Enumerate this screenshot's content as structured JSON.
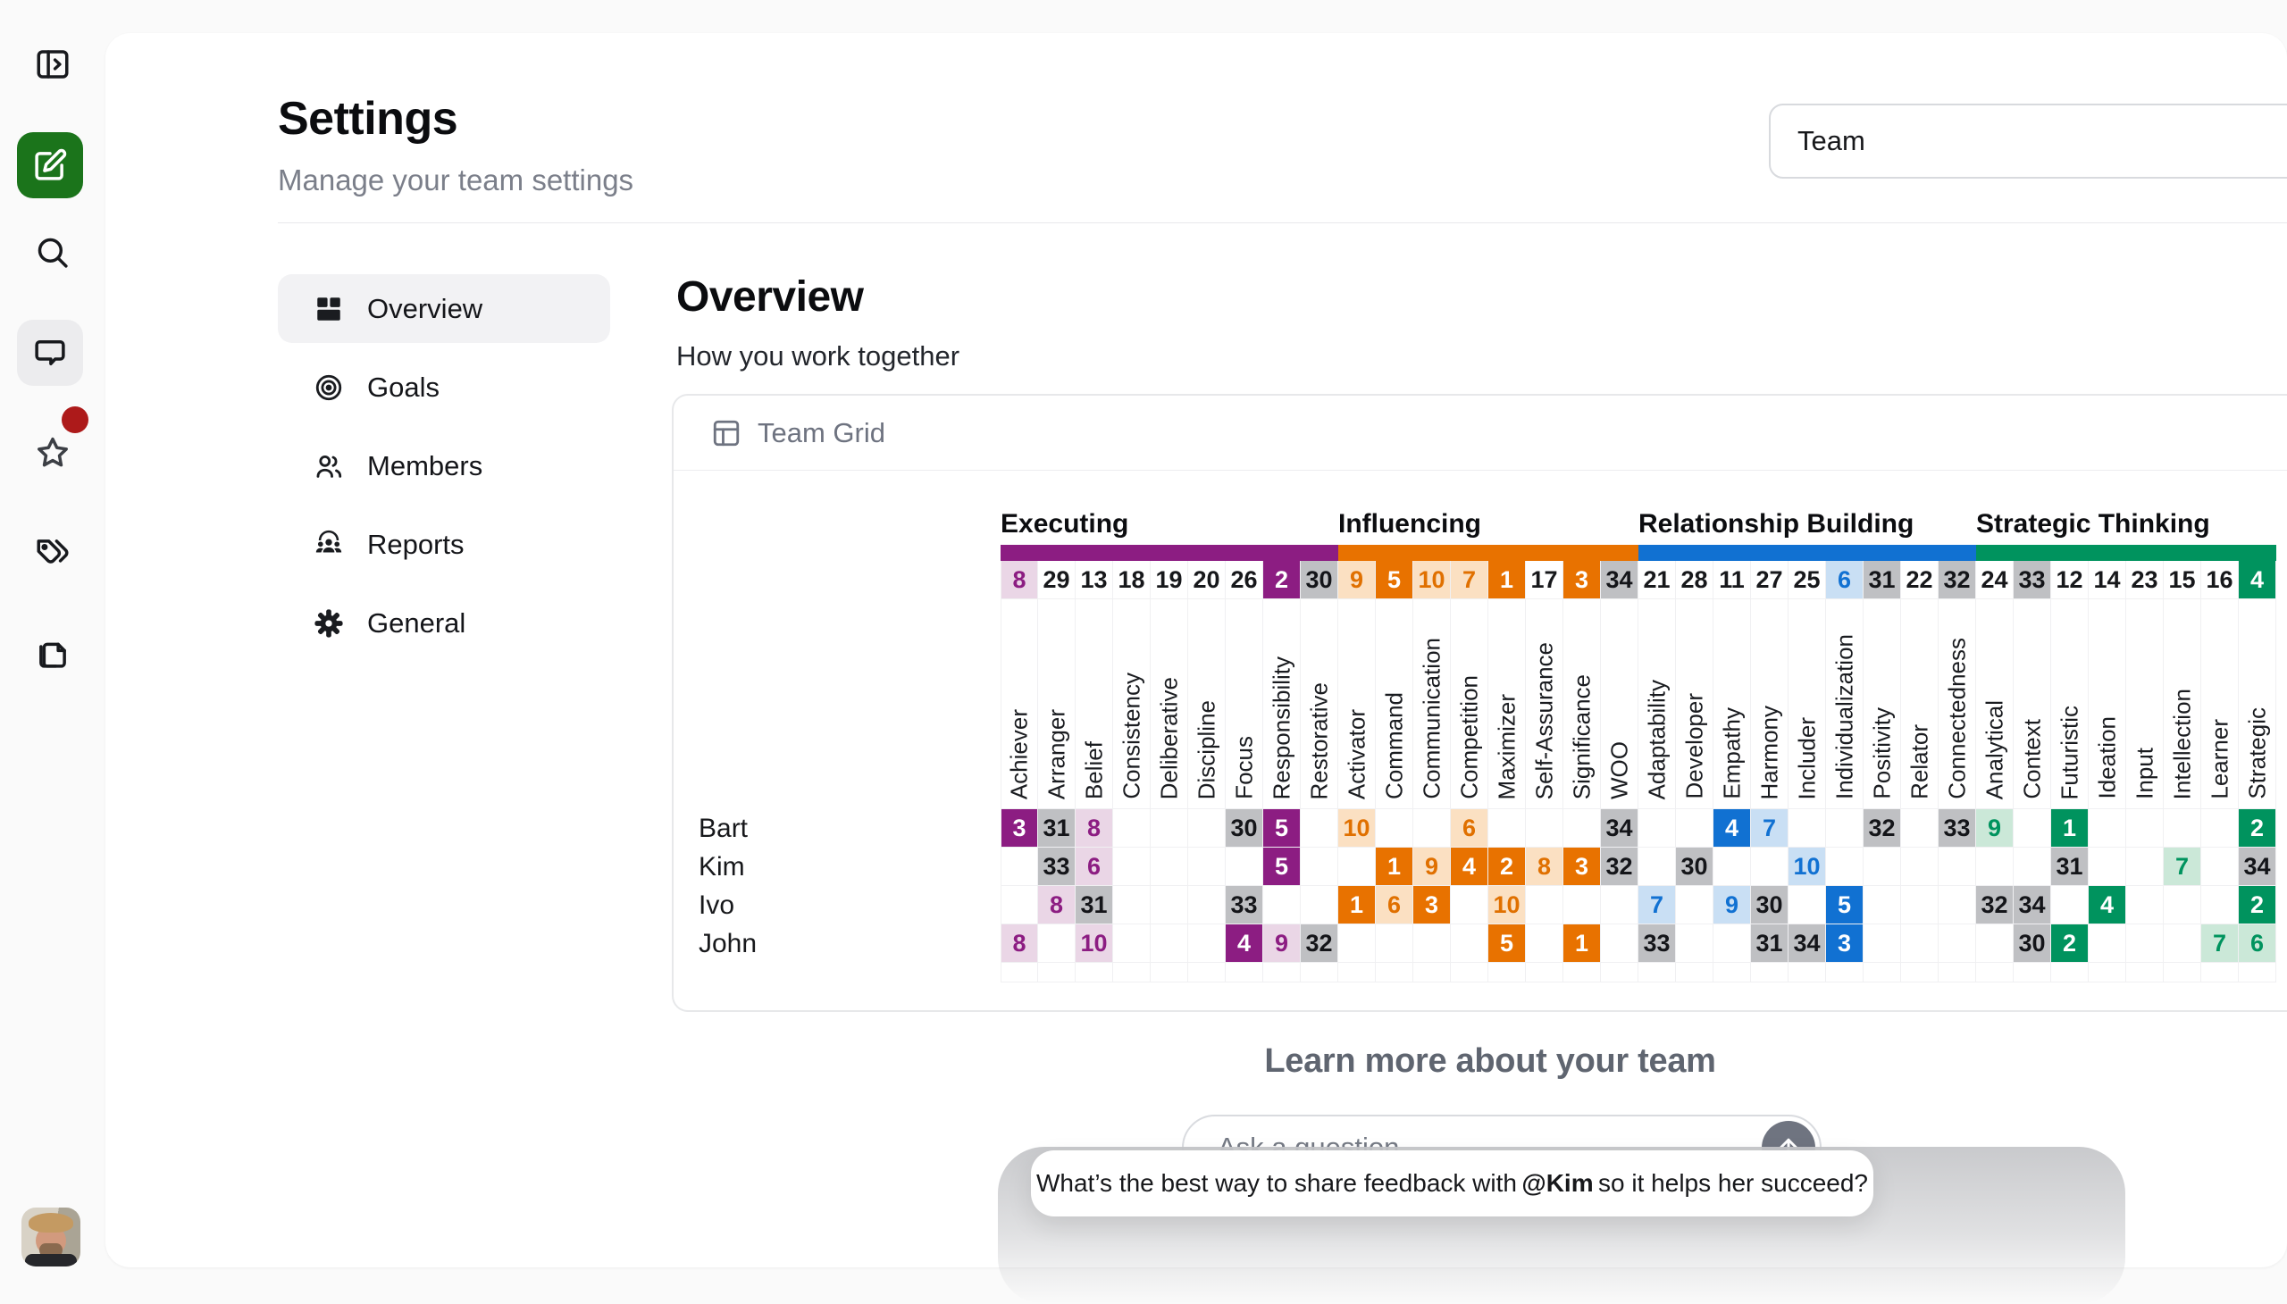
{
  "header": {
    "title": "Settings",
    "subtitle": "Manage your team settings",
    "team_selector_value": "Team"
  },
  "nav": {
    "items": [
      {
        "label": "Overview",
        "active": true
      },
      {
        "label": "Goals",
        "active": false
      },
      {
        "label": "Members",
        "active": false
      },
      {
        "label": "Reports",
        "active": false
      },
      {
        "label": "General",
        "active": false
      }
    ]
  },
  "content": {
    "heading": "Overview",
    "subheading": "How you work together"
  },
  "team_grid": {
    "card_title": "Team Grid",
    "gray": {
      "bg": "#BFC0C3",
      "text": "#141519"
    },
    "groups": [
      {
        "name": "Executing",
        "solid": "#8C1D82",
        "light": "#EAD6E6",
        "text": "#8C1D82"
      },
      {
        "name": "Influencing",
        "solid": "#E87200",
        "light": "#FBE0C2",
        "text": "#E07000"
      },
      {
        "name": "Relationship Building",
        "solid": "#1171D2",
        "light": "#C9DFF4",
        "text": "#1171D2"
      },
      {
        "name": "Strategic Thinking",
        "solid": "#00935E",
        "light": "#CBE8D8",
        "text": "#00935E"
      }
    ],
    "columns": [
      {
        "label": "Achiever",
        "group": 0
      },
      {
        "label": "Arranger",
        "group": 0
      },
      {
        "label": "Belief",
        "group": 0
      },
      {
        "label": "Consistency",
        "group": 0
      },
      {
        "label": "Deliberative",
        "group": 0
      },
      {
        "label": "Discipline",
        "group": 0
      },
      {
        "label": "Focus",
        "group": 0
      },
      {
        "label": "Responsibility",
        "group": 0
      },
      {
        "label": "Restorative",
        "group": 0
      },
      {
        "label": "Activator",
        "group": 1
      },
      {
        "label": "Command",
        "group": 1
      },
      {
        "label": "Communication",
        "group": 1
      },
      {
        "label": "Competition",
        "group": 1
      },
      {
        "label": "Maximizer",
        "group": 1
      },
      {
        "label": "Self-Assurance",
        "group": 1
      },
      {
        "label": "Significance",
        "group": 1
      },
      {
        "label": "WOO",
        "group": 1
      },
      {
        "label": "Adaptability",
        "group": 2
      },
      {
        "label": "Developer",
        "group": 2
      },
      {
        "label": "Empathy",
        "group": 2
      },
      {
        "label": "Harmony",
        "group": 2
      },
      {
        "label": "Includer",
        "group": 2
      },
      {
        "label": "Individualization",
        "group": 2
      },
      {
        "label": "Positivity",
        "group": 2
      },
      {
        "label": "Relator",
        "group": 2
      },
      {
        "label": "Connectedness",
        "group": 2
      },
      {
        "label": "Analytical",
        "group": 3
      },
      {
        "label": "Context",
        "group": 3
      },
      {
        "label": "Futuristic",
        "group": 3
      },
      {
        "label": "Ideation",
        "group": 3
      },
      {
        "label": "Input",
        "group": 3
      },
      {
        "label": "Intellection",
        "group": 3
      },
      {
        "label": "Learner",
        "group": 3
      },
      {
        "label": "Strategic",
        "group": 3
      }
    ],
    "summary": [
      8,
      29,
      13,
      18,
      19,
      20,
      26,
      2,
      30,
      9,
      5,
      10,
      7,
      1,
      17,
      3,
      34,
      21,
      28,
      11,
      27,
      25,
      6,
      31,
      22,
      32,
      24,
      33,
      12,
      14,
      23,
      15,
      16,
      4
    ],
    "members": [
      {
        "name": "Bart",
        "ranks": {
          "1": 3,
          "2": 31,
          "3": 8,
          "7": 30,
          "8": 5,
          "10": 10,
          "13": 6,
          "17": 34,
          "20": 4,
          "21": 7,
          "24": 32,
          "26": 33,
          "27": 9,
          "29": 1,
          "34": 2
        }
      },
      {
        "name": "Kim",
        "ranks": {
          "2": 33,
          "3": 6,
          "8": 5,
          "11": 1,
          "12": 9,
          "13": 4,
          "14": 2,
          "15": 8,
          "16": 3,
          "17": 32,
          "19": 30,
          "22": 10,
          "29": 31,
          "32": 7,
          "34": 34
        }
      },
      {
        "name": "Ivo",
        "ranks": {
          "2": 8,
          "3": 31,
          "7": 33,
          "10": 1,
          "11": 6,
          "12": 3,
          "14": 10,
          "18": 7,
          "20": 9,
          "21": 30,
          "23": 5,
          "27": 32,
          "28": 34,
          "30": 4,
          "34": 2
        }
      },
      {
        "name": "John",
        "ranks": {
          "1": 8,
          "3": 10,
          "7": 4,
          "8": 9,
          "9": 32,
          "14": 5,
          "16": 1,
          "18": 33,
          "21": 31,
          "22": 34,
          "23": 3,
          "28": 30,
          "29": 2,
          "33": 7,
          "34": 6
        }
      }
    ]
  },
  "footer": {
    "heading": "Learn more about your team",
    "input_placeholder": "Ask a question",
    "bubble": {
      "prefix": "What’s the best way to share feedback with",
      "mention": "@Kim",
      "suffix": "so it helps her succeed?"
    }
  }
}
